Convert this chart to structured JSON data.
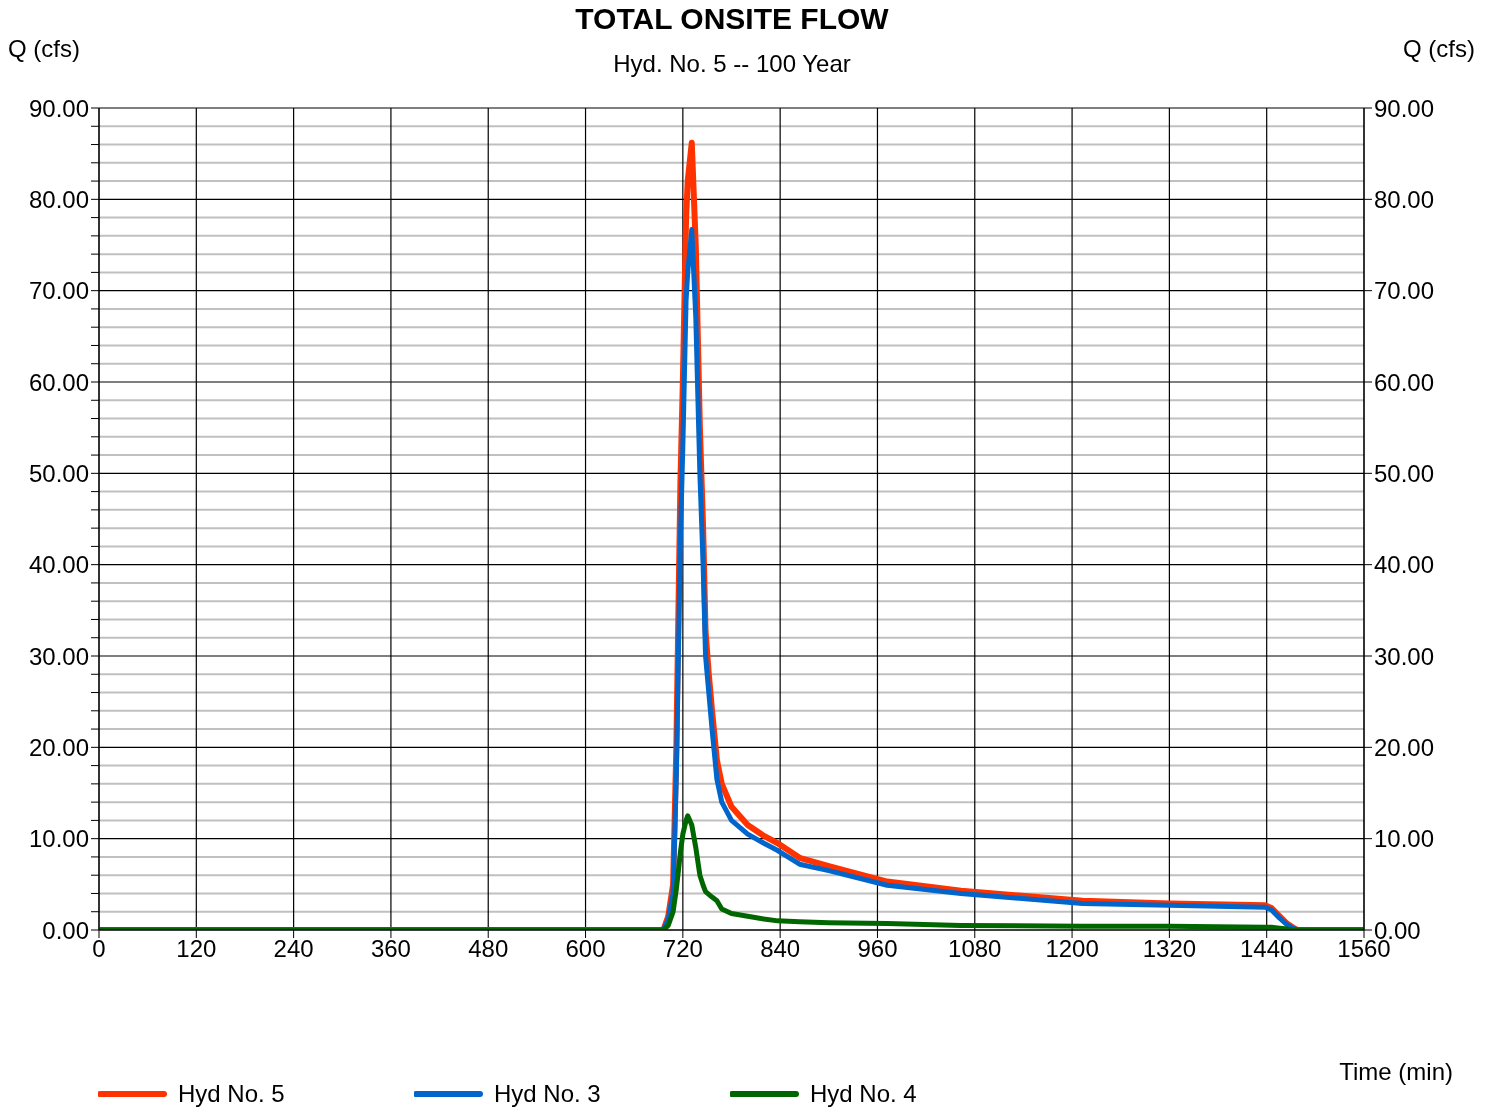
{
  "chart_data": {
    "type": "line",
    "title": "TOTAL ONSITE FLOW",
    "subtitle": "Hyd. No. 5 -- 100 Year",
    "xlabel": "Time (min)",
    "ylabel": "Q (cfs)",
    "y2label": "Q (cfs)",
    "x": [
      0,
      600,
      696,
      702,
      708,
      712,
      717,
      720,
      724,
      726,
      731,
      736,
      741,
      745,
      748,
      752,
      756,
      762,
      768,
      780,
      800,
      820,
      837,
      864,
      900,
      972,
      1063,
      1213,
      1320,
      1438,
      1446,
      1456,
      1465,
      1472,
      1478,
      1490,
      1560
    ],
    "series": [
      {
        "name": "Hyd No. 5",
        "color": "#ff3300",
        "values": [
          0,
          0,
          0,
          1.5,
          5,
          20,
          49,
          60,
          78,
          82,
          86.2,
          74.7,
          55,
          44,
          32.7,
          28,
          24,
          18.6,
          16,
          13.5,
          11.5,
          10.3,
          9.5,
          7.9,
          7.0,
          5.3,
          4.3,
          3.2,
          2.9,
          2.7,
          2.4,
          1.5,
          0.7,
          0.3,
          0,
          0,
          0
        ]
      },
      {
        "name": "Hyd No. 3",
        "color": "#0066cc",
        "values": [
          0,
          0,
          0,
          1.2,
          4,
          17,
          43,
          53,
          69,
          72,
          76.7,
          67,
          50,
          40,
          30,
          26,
          22,
          16.5,
          14,
          12,
          10.5,
          9.5,
          8.7,
          7.2,
          6.5,
          4.9,
          4.0,
          2.9,
          2.7,
          2.5,
          2.2,
          1.3,
          0.6,
          0.2,
          0,
          0,
          0
        ]
      },
      {
        "name": "Hyd No. 4",
        "color": "#006600",
        "values": [
          0,
          0,
          0,
          0.5,
          2,
          4.5,
          8.5,
          10.5,
          12,
          12.5,
          11.5,
          9,
          6,
          4.9,
          4.2,
          3.9,
          3.6,
          3.2,
          2.3,
          1.8,
          1.5,
          1.2,
          1.0,
          0.9,
          0.8,
          0.7,
          0.5,
          0.4,
          0.4,
          0.3,
          0.3,
          0.2,
          0.1,
          0,
          0,
          0,
          0
        ]
      }
    ],
    "xlim": [
      0,
      1560
    ],
    "xticks": [
      0,
      120,
      240,
      360,
      480,
      600,
      720,
      840,
      960,
      1080,
      1200,
      1320,
      1440,
      1560
    ],
    "ylim": [
      0,
      90
    ],
    "yticks": [
      {
        "value": 0,
        "label": "0.00"
      },
      {
        "value": 2,
        "label": null
      },
      {
        "value": 4,
        "label": null
      },
      {
        "value": 6,
        "label": null
      },
      {
        "value": 8,
        "label": null
      },
      {
        "value": 10,
        "label": "10.00"
      },
      {
        "value": 12,
        "label": null
      },
      {
        "value": 14,
        "label": null
      },
      {
        "value": 16,
        "label": null
      },
      {
        "value": 18,
        "label": null
      },
      {
        "value": 20,
        "label": "20.00"
      },
      {
        "value": 22,
        "label": null
      },
      {
        "value": 24,
        "label": null
      },
      {
        "value": 26,
        "label": null
      },
      {
        "value": 28,
        "label": null
      },
      {
        "value": 30,
        "label": "30.00"
      },
      {
        "value": 32,
        "label": null
      },
      {
        "value": 34,
        "label": null
      },
      {
        "value": 36,
        "label": null
      },
      {
        "value": 38,
        "label": null
      },
      {
        "value": 40,
        "label": "40.00"
      },
      {
        "value": 42,
        "label": null
      },
      {
        "value": 44,
        "label": null
      },
      {
        "value": 46,
        "label": null
      },
      {
        "value": 48,
        "label": null
      },
      {
        "value": 50,
        "label": "50.00"
      },
      {
        "value": 52,
        "label": null
      },
      {
        "value": 54,
        "label": null
      },
      {
        "value": 56,
        "label": null
      },
      {
        "value": 58,
        "label": null
      },
      {
        "value": 60,
        "label": "60.00"
      },
      {
        "value": 62,
        "label": null
      },
      {
        "value": 64,
        "label": null
      },
      {
        "value": 66,
        "label": null
      },
      {
        "value": 68,
        "label": null
      },
      {
        "value": 70,
        "label": "70.00"
      },
      {
        "value": 72,
        "label": null
      },
      {
        "value": 74,
        "label": null
      },
      {
        "value": 76,
        "label": null
      },
      {
        "value": 78,
        "label": null
      },
      {
        "value": 80,
        "label": "80.00"
      },
      {
        "value": 82,
        "label": null
      },
      {
        "value": 84,
        "label": null
      },
      {
        "value": 86,
        "label": null
      },
      {
        "value": 88,
        "label": null
      },
      {
        "value": 90,
        "label": "90.00"
      }
    ],
    "y2lim": [
      0,
      90
    ],
    "y2ticks": [
      {
        "value": 0,
        "label": "0.00"
      },
      {
        "value": 10,
        "label": "10.00"
      },
      {
        "value": 20,
        "label": "20.00"
      },
      {
        "value": 30,
        "label": "30.00"
      },
      {
        "value": 40,
        "label": "40.00"
      },
      {
        "value": 50,
        "label": "50.00"
      },
      {
        "value": 60,
        "label": "60.00"
      },
      {
        "value": 70,
        "label": "70.00"
      },
      {
        "value": 80,
        "label": "80.00"
      },
      {
        "value": 90,
        "label": "90.00"
      }
    ],
    "grid": true,
    "legend": "bottom left",
    "marker": "none",
    "line_style": "solid"
  }
}
